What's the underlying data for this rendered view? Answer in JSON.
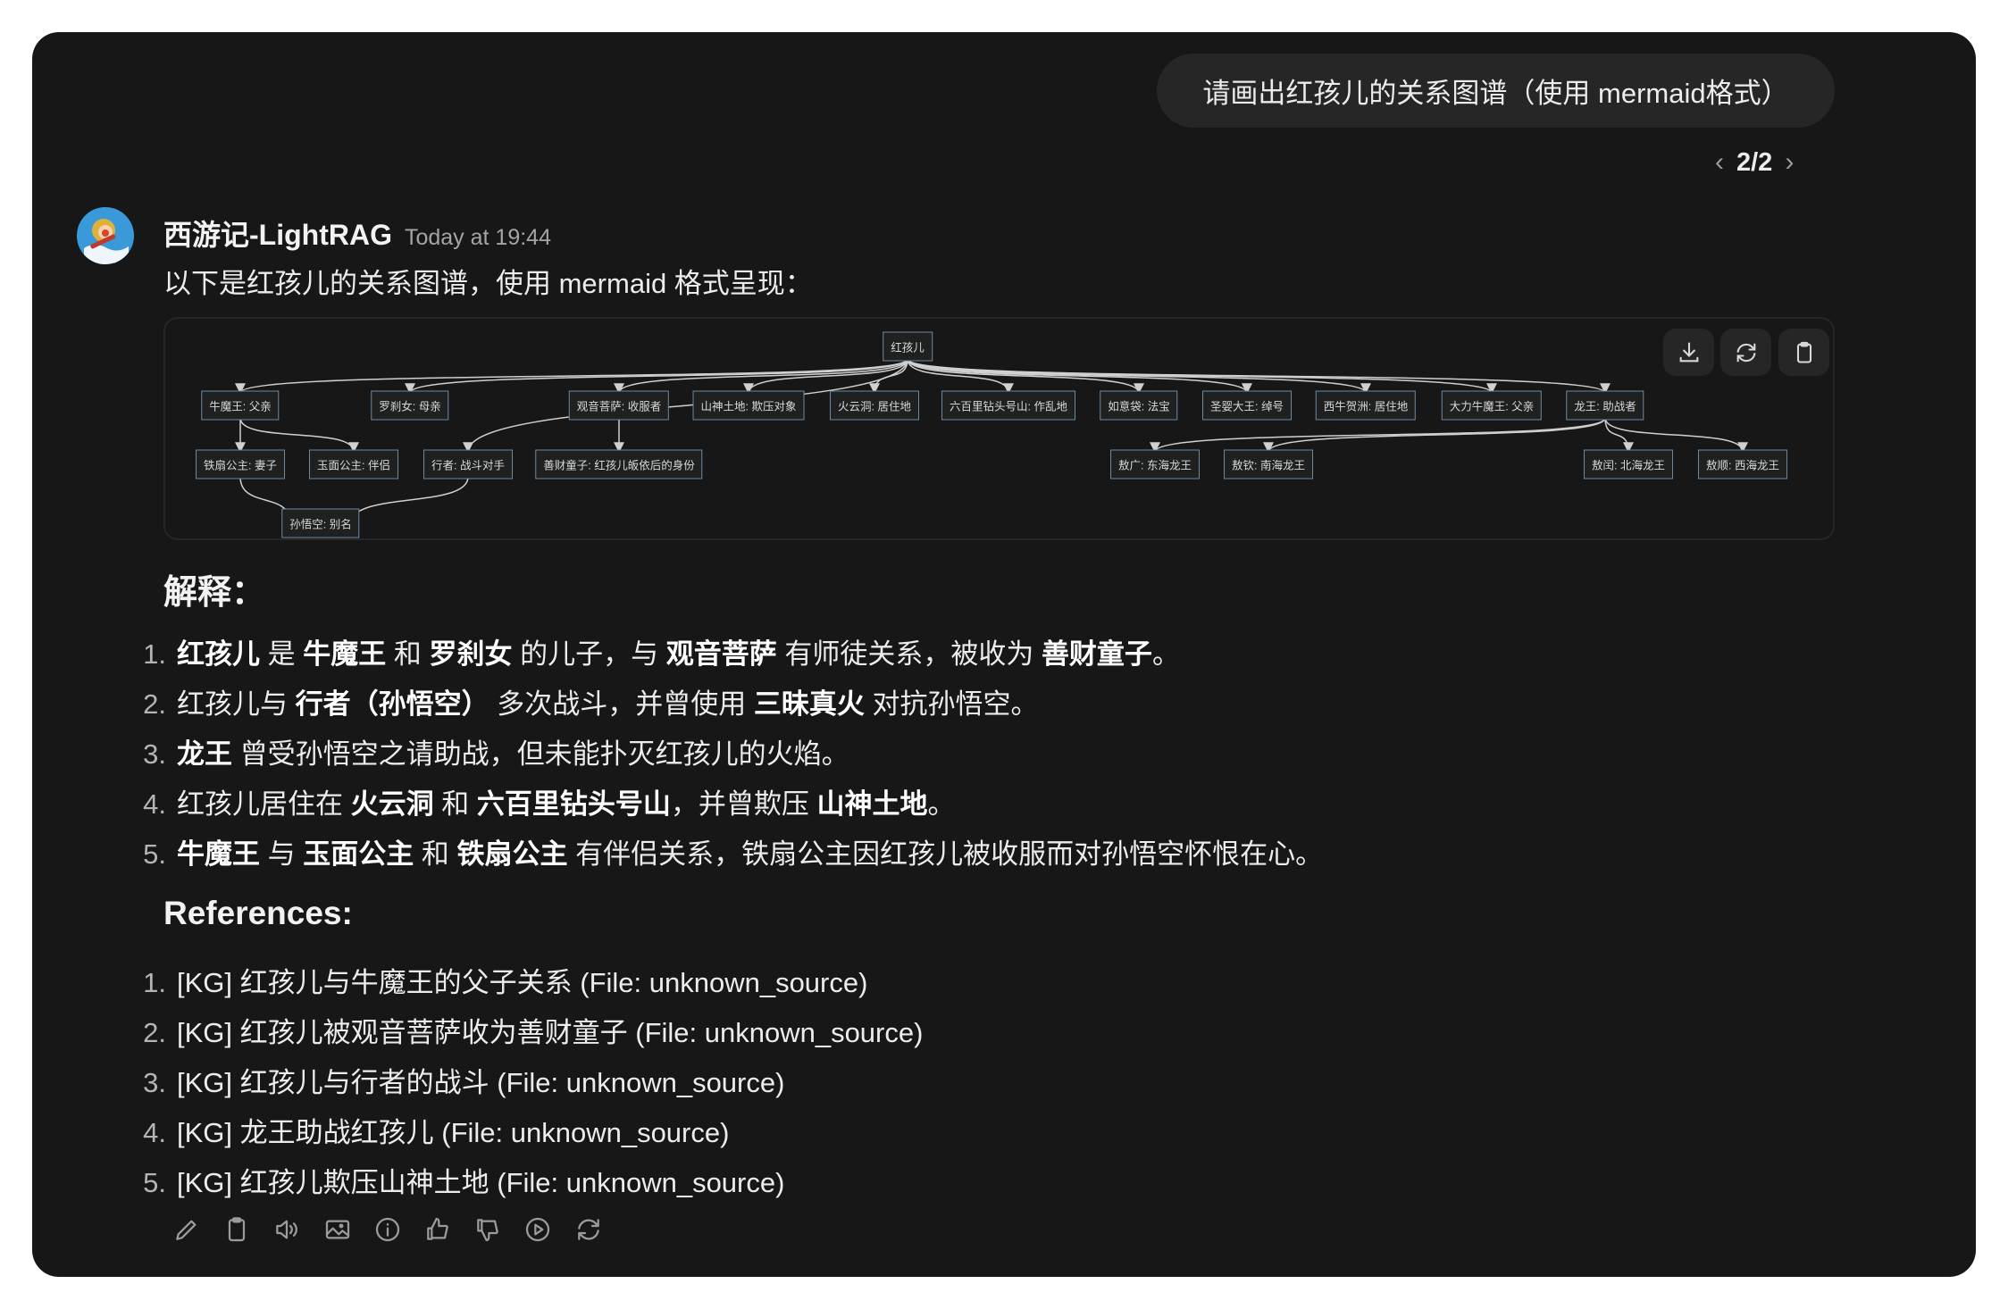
{
  "user_message": "请画出红孩儿的关系图谱（使用 mermaid格式）",
  "pager": {
    "prev_icon": "chevron-left-icon",
    "label": "2/2",
    "next_icon": "chevron-right-icon"
  },
  "assistant": {
    "name": "西游记-LightRAG",
    "time": "Today at 19:44",
    "intro": "以下是红孩儿的关系图谱，使用 mermaid 格式呈现："
  },
  "diagram": {
    "buttons": [
      "download-icon",
      "refresh-icon",
      "clipboard-icon"
    ],
    "nodes": {
      "root": "红孩儿",
      "nmw": "牛魔王: 父亲",
      "lcn": "罗刹女: 母亲",
      "gy": "观音菩萨: 收服者",
      "ss": "山神土地: 欺压对象",
      "hyd": "火云洞: 居住地",
      "lbl": "六百里钻头号山: 作乱地",
      "ryd": "如意袋: 法宝",
      "sy": "圣婴大王: 绰号",
      "xn": "西牛贺洲: 居住地",
      "dl": "大力牛魔王: 父亲",
      "lw": "龙王: 助战者",
      "tsgz": "铁扇公主: 妻子",
      "ymgz": "玉面公主: 伴侣",
      "xz": "行者: 战斗对手",
      "scz": "善财童子: 红孩儿皈依后的身份",
      "ag": "敖广: 东海龙王",
      "aq": "敖钦: 南海龙王",
      "ar": "敖闰: 北海龙王",
      "as": "敖顺: 西海龙王",
      "swk": "孙悟空: 别名"
    }
  },
  "explanation": {
    "heading": "解释：",
    "items": [
      [
        {
          "t": "红孩儿",
          "b": true
        },
        {
          "t": " 是 "
        },
        {
          "t": "牛魔王",
          "b": true
        },
        {
          "t": " 和 "
        },
        {
          "t": "罗刹女",
          "b": true
        },
        {
          "t": " 的儿子，与 "
        },
        {
          "t": "观音菩萨",
          "b": true
        },
        {
          "t": " 有师徒关系，被收为 "
        },
        {
          "t": "善财童子",
          "b": true
        },
        {
          "t": "。"
        }
      ],
      [
        {
          "t": "红孩儿与 "
        },
        {
          "t": "行者（孙悟空）",
          "b": true
        },
        {
          "t": " 多次战斗，并曾使用 "
        },
        {
          "t": "三昧真火",
          "b": true
        },
        {
          "t": " 对抗孙悟空。"
        }
      ],
      [
        {
          "t": "龙王",
          "b": true
        },
        {
          "t": " 曾受孙悟空之请助战，但未能扑灭红孩儿的火焰。"
        }
      ],
      [
        {
          "t": "红孩儿居住在 "
        },
        {
          "t": "火云洞",
          "b": true
        },
        {
          "t": " 和 "
        },
        {
          "t": "六百里钻头号山",
          "b": true
        },
        {
          "t": "，并曾欺压 "
        },
        {
          "t": "山神土地",
          "b": true
        },
        {
          "t": "。"
        }
      ],
      [
        {
          "t": "牛魔王",
          "b": true
        },
        {
          "t": " 与 "
        },
        {
          "t": "玉面公主",
          "b": true
        },
        {
          "t": " 和 "
        },
        {
          "t": "铁扇公主",
          "b": true
        },
        {
          "t": " 有伴侣关系，铁扇公主因红孩儿被收服而对孙悟空怀恨在心。"
        }
      ]
    ]
  },
  "references": {
    "heading": "References:",
    "items": [
      "[KG] 红孩儿与牛魔王的父子关系 (File: unknown_source)",
      "[KG] 红孩儿被观音菩萨收为善财童子 (File: unknown_source)",
      "[KG] 红孩儿与行者的战斗 (File: unknown_source)",
      "[KG] 龙王助战红孩儿 (File: unknown_source)",
      "[KG] 红孩儿欺压山神土地 (File: unknown_source)"
    ]
  },
  "actions": [
    "edit-icon",
    "copy-icon",
    "read-aloud-icon",
    "image-icon",
    "info-icon",
    "thumbs-up-icon",
    "thumbs-down-icon",
    "play-icon",
    "regenerate-icon"
  ],
  "colors": {
    "background": "#171717",
    "bubble": "#262626",
    "node_border": "#6b8aa6",
    "edge": "#d0d0d0"
  }
}
